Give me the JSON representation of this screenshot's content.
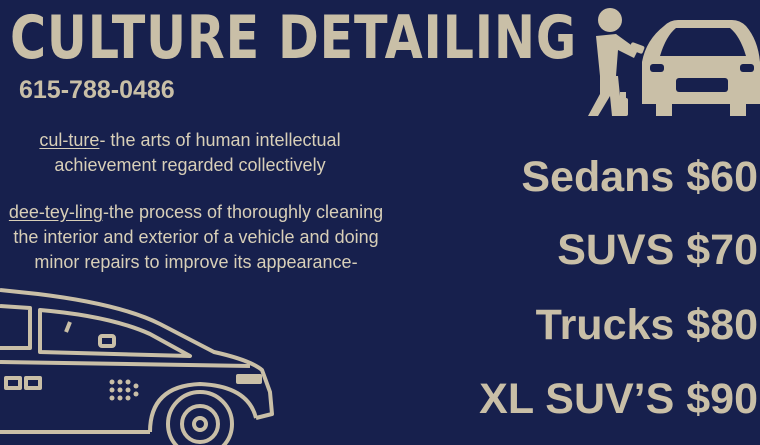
{
  "header": {
    "title": "CULTURE DETAILING",
    "phone": "615-788-0486"
  },
  "definitions": [
    {
      "term": "cul-ture",
      "text": "- the arts of human intellectual achievement regarded collectively"
    },
    {
      "term": "dee-tey-ling",
      "text": "-the process of thoroughly cleaning the interior and exterior of a vehicle and doing minor repairs to improve its appearance-"
    }
  ],
  "prices": [
    {
      "label": "Sedans $60"
    },
    {
      "label": "SUVS $70"
    },
    {
      "label": "Trucks $80"
    },
    {
      "label": "XL SUV’S $90"
    }
  ],
  "illustrations": {
    "top_right": "man-washing-car-icon",
    "bottom_left": "car-outline-drawing"
  },
  "colors": {
    "background": "#17204d",
    "text": "#c9bfa7"
  }
}
